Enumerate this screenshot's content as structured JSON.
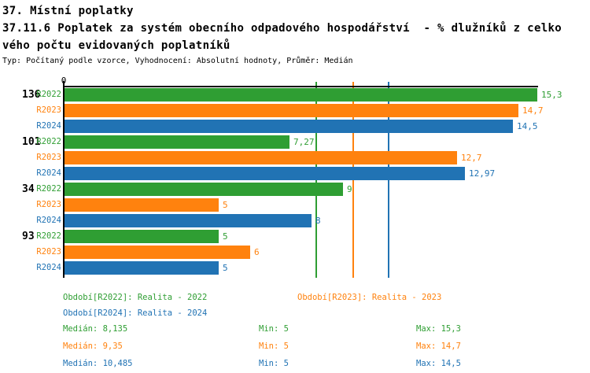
{
  "header": {
    "title_line1": "37. Místní poplatky",
    "subtitle_line1": "37.11.6 Poplatek za systém obecního odpadového hospodářství  - % dlužníků z celko",
    "subtitle_line2": "vého počtu evidovaných poplatníků",
    "meta": "Typ: Počítaný podle vzorce, Vyhodnocení: Absolutní hodnoty, Průměr: Medián"
  },
  "colors": {
    "green": "#2f9e33",
    "orange": "#ff820e",
    "blue": "#2173b4",
    "axis": "#000000",
    "background": "#ffffff"
  },
  "chart_data": {
    "type": "bar",
    "orientation": "horizontal",
    "axis": {
      "tick_label": "0",
      "xlim": [
        0,
        15.3
      ]
    },
    "series_labels": [
      "R2022",
      "R2023",
      "R2024"
    ],
    "series_colors": [
      "#2f9e33",
      "#ff820e",
      "#2173b4"
    ],
    "groups": [
      {
        "label": "136",
        "values": [
          15.3,
          14.7,
          14.5
        ],
        "display": [
          "15,3",
          "14,7",
          "14,5"
        ]
      },
      {
        "label": "101",
        "values": [
          7.27,
          12.7,
          12.97
        ],
        "display": [
          "7,27",
          "12,7",
          "12,97"
        ]
      },
      {
        "label": "34",
        "values": [
          9,
          5,
          8
        ],
        "display": [
          "9",
          "5",
          "8"
        ]
      },
      {
        "label": "93",
        "values": [
          5,
          6,
          5
        ],
        "display": [
          "5",
          "6",
          "5"
        ]
      }
    ],
    "median_lines": [
      {
        "value": 8.135,
        "series": "R2022"
      },
      {
        "value": 9.35,
        "series": "R2023"
      },
      {
        "value": 10.485,
        "series": "R2024"
      }
    ],
    "legend": [
      {
        "label": "Období[R2022]: Realita - 2022"
      },
      {
        "label": "Období[R2023]: Realita - 2023"
      },
      {
        "label": "Období[R2024]: Realita - 2024"
      }
    ],
    "stats": [
      {
        "median": "Medián: 8,135",
        "min": "Min: 5",
        "max": "Max: 15,3"
      },
      {
        "median": "Medián: 9,35",
        "min": "Min: 5",
        "max": "Max: 14,7"
      },
      {
        "median": "Medián: 10,485",
        "min": "Min: 5",
        "max": "Max: 14,5"
      }
    ],
    "legend_position": "bottom",
    "grid": false
  }
}
